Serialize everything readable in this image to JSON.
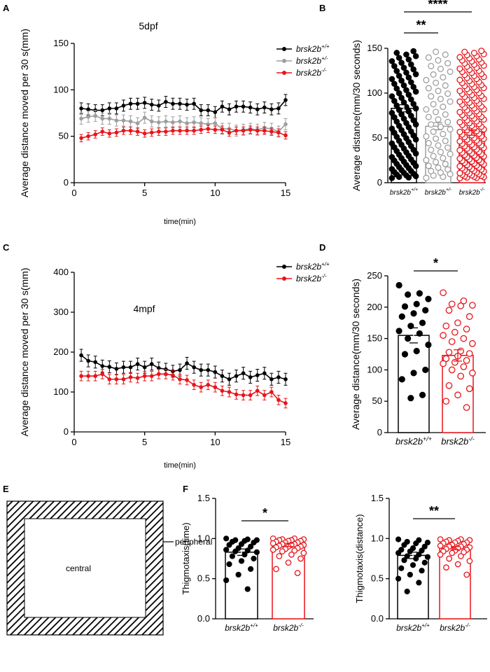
{
  "colors": {
    "wt": "#000000",
    "het": "#9e9e9e",
    "ko": "#e8141a"
  },
  "geno": {
    "base": "brsk2b",
    "wt": "+/+",
    "het": "+/-",
    "ko": "-/-"
  },
  "panel_letters": [
    "A",
    "B",
    "C",
    "D",
    "E",
    "F"
  ],
  "chart_data": [
    {
      "id": "A",
      "type": "line",
      "title": "5dpf",
      "xlabel": "time(min)",
      "ylabel": "Average distance moved per 30 s(mm)",
      "xlim": [
        0,
        15
      ],
      "ylim": [
        0,
        150
      ],
      "xticks": [
        0,
        5,
        10,
        15
      ],
      "yticks": [
        0,
        50,
        100,
        150
      ],
      "x": [
        0.5,
        1,
        1.5,
        2,
        2.5,
        3,
        3.5,
        4,
        4.5,
        5,
        5.5,
        6,
        6.5,
        7,
        7.5,
        8,
        8.5,
        9,
        9.5,
        10,
        10.5,
        11,
        11.5,
        12,
        12.5,
        13,
        13.5,
        14,
        14.5,
        15
      ],
      "legend": "top-right",
      "series": [
        {
          "name": "brsk2b+/+",
          "geno": "wt",
          "values": [
            80,
            79,
            78,
            78,
            80,
            80,
            83,
            85,
            85,
            86,
            84,
            83,
            87,
            85,
            85,
            84,
            85,
            78,
            78,
            76,
            82,
            79,
            82,
            82,
            81,
            79,
            81,
            79,
            80,
            89
          ],
          "err": [
            6,
            6,
            6,
            6,
            6,
            6,
            6,
            6,
            6,
            6,
            6,
            6,
            6,
            6,
            6,
            6,
            6,
            6,
            6,
            6,
            6,
            6,
            6,
            6,
            6,
            6,
            6,
            6,
            6,
            6
          ]
        },
        {
          "name": "brsk2b+/-",
          "geno": "het",
          "values": [
            69,
            71,
            72,
            69,
            69,
            67,
            67,
            66,
            64,
            70,
            66,
            65,
            66,
            65,
            66,
            64,
            65,
            64,
            63,
            64,
            58,
            58,
            56,
            57,
            58,
            57,
            59,
            58,
            55,
            63
          ],
          "err": [
            6,
            6,
            6,
            6,
            6,
            6,
            6,
            6,
            6,
            6,
            6,
            6,
            6,
            6,
            6,
            6,
            6,
            6,
            6,
            6,
            6,
            6,
            6,
            6,
            6,
            6,
            6,
            6,
            6,
            6
          ]
        },
        {
          "name": "brsk2b-/-",
          "geno": "ko",
          "values": [
            48,
            50,
            52,
            55,
            53,
            54,
            56,
            56,
            55,
            53,
            54,
            55,
            55,
            56,
            56,
            56,
            56,
            57,
            58,
            57,
            57,
            54,
            56,
            56,
            57,
            56,
            56,
            55,
            54,
            51
          ],
          "err": [
            4,
            4,
            4,
            4,
            4,
            4,
            4,
            4,
            4,
            4,
            4,
            4,
            4,
            4,
            4,
            4,
            4,
            4,
            4,
            4,
            4,
            4,
            4,
            4,
            4,
            4,
            4,
            4,
            4,
            4
          ]
        }
      ]
    },
    {
      "id": "B",
      "type": "bar",
      "ylabel": "Average distance(mm/30 seconds)",
      "ylim": [
        0,
        150
      ],
      "yticks": [
        0,
        50,
        100,
        150
      ],
      "series": [
        {
          "name": "brsk2b+/+",
          "geno": "wt",
          "mean": 83,
          "sem": 4,
          "n": 95
        },
        {
          "name": "brsk2b+/-",
          "geno": "het",
          "mean": 63,
          "sem": 4,
          "n": 55
        },
        {
          "name": "brsk2b-/-",
          "geno": "ko",
          "mean": 56,
          "sem": 3,
          "n": 150
        }
      ],
      "significance": [
        {
          "from": 0,
          "to": 1,
          "label": "**"
        },
        {
          "from": 0,
          "to": 2,
          "label": "****"
        }
      ]
    },
    {
      "id": "C",
      "type": "line",
      "title": "4mpf",
      "xlabel": "time(min)",
      "ylabel": "Average distance moved per 30 s(mm)",
      "xlim": [
        0,
        15
      ],
      "ylim": [
        0,
        400
      ],
      "xticks": [
        0,
        5,
        10,
        15
      ],
      "yticks": [
        0,
        100,
        200,
        300,
        400
      ],
      "x": [
        0.5,
        1,
        1.5,
        2,
        2.5,
        3,
        3.5,
        4,
        4.5,
        5,
        5.5,
        6,
        6.5,
        7,
        7.5,
        8,
        8.5,
        9,
        9.5,
        10,
        10.5,
        11,
        11.5,
        12,
        12.5,
        13,
        13.5,
        14,
        14.5,
        15
      ],
      "legend": "top-right",
      "series": [
        {
          "name": "brsk2b+/+",
          "geno": "wt",
          "values": [
            192,
            178,
            175,
            165,
            163,
            158,
            162,
            162,
            170,
            162,
            170,
            160,
            157,
            152,
            155,
            172,
            162,
            155,
            155,
            150,
            140,
            132,
            140,
            147,
            137,
            142,
            147,
            132,
            137,
            132
          ],
          "err": [
            15,
            15,
            15,
            15,
            15,
            15,
            15,
            15,
            15,
            15,
            15,
            15,
            15,
            15,
            15,
            15,
            15,
            15,
            15,
            15,
            15,
            15,
            15,
            15,
            15,
            15,
            15,
            15,
            15,
            15
          ]
        },
        {
          "name": "brsk2b-/-",
          "geno": "ko",
          "values": [
            140,
            140,
            140,
            145,
            132,
            132,
            132,
            137,
            135,
            140,
            140,
            145,
            145,
            142,
            132,
            130,
            118,
            112,
            118,
            112,
            103,
            100,
            94,
            92,
            92,
            103,
            92,
            100,
            80,
            72
          ],
          "err": [
            12,
            12,
            12,
            12,
            12,
            12,
            12,
            12,
            12,
            12,
            12,
            12,
            12,
            12,
            12,
            12,
            12,
            12,
            12,
            12,
            12,
            12,
            12,
            12,
            12,
            12,
            12,
            12,
            12,
            12
          ]
        }
      ]
    },
    {
      "id": "D",
      "type": "bar",
      "ylabel": "Average distance(mm/30 seconds)",
      "ylim": [
        0,
        250
      ],
      "yticks": [
        0,
        50,
        100,
        150,
        200,
        250
      ],
      "series": [
        {
          "name": "brsk2b+/+",
          "geno": "wt",
          "mean": 155,
          "sem": 12,
          "points": [
            235,
            222,
            220,
            213,
            205,
            201,
            195,
            190,
            185,
            175,
            170,
            162,
            158,
            150,
            140,
            130,
            125,
            100,
            95,
            85,
            60,
            55
          ]
        },
        {
          "name": "brsk2b-/-",
          "geno": "ko",
          "points": [
            223,
            210,
            205,
            203,
            202,
            195,
            185,
            175,
            170,
            165,
            160,
            155,
            150,
            145,
            142,
            130,
            128,
            126,
            122,
            118,
            115,
            112,
            110,
            105,
            100,
            95,
            90,
            75,
            70,
            60,
            50,
            40
          ],
          "mean": 123,
          "sem": 9
        }
      ],
      "significance": [
        {
          "from": 0,
          "to": 1,
          "label": "*"
        }
      ]
    },
    {
      "id": "F1",
      "type": "bar",
      "ylabel": "Thigmotaxis(time)",
      "ylim": [
        0,
        1.5
      ],
      "yticks": [
        "0.0",
        "0.5",
        "1.0",
        "1.5"
      ],
      "series": [
        {
          "name": "brsk2b+/+",
          "geno": "wt",
          "mean": 0.83,
          "sem": 0.04,
          "points": [
            1.0,
            0.99,
            0.98,
            0.98,
            0.97,
            0.96,
            0.95,
            0.93,
            0.92,
            0.9,
            0.88,
            0.86,
            0.85,
            0.84,
            0.83,
            0.8,
            0.78,
            0.75,
            0.72,
            0.68,
            0.62,
            0.55,
            0.48,
            0.37
          ]
        },
        {
          "name": "brsk2b-/-",
          "geno": "ko",
          "mean": 0.92,
          "sem": 0.02,
          "points": [
            1.0,
            1.0,
            0.99,
            0.99,
            0.98,
            0.98,
            0.97,
            0.97,
            0.96,
            0.95,
            0.95,
            0.94,
            0.93,
            0.93,
            0.92,
            0.92,
            0.91,
            0.9,
            0.9,
            0.89,
            0.88,
            0.87,
            0.86,
            0.85,
            0.84,
            0.82,
            0.8,
            0.78,
            0.75,
            0.7,
            0.62,
            0.57
          ]
        }
      ],
      "significance": [
        {
          "from": 0,
          "to": 1,
          "label": "*"
        }
      ]
    },
    {
      "id": "F2",
      "type": "bar",
      "ylabel": "Thigmotaxis(distance)",
      "ylim": [
        0,
        1.5
      ],
      "yticks": [
        "0.0",
        "0.5",
        "1.0",
        "1.5"
      ],
      "series": [
        {
          "name": "brsk2b+/+",
          "geno": "wt",
          "mean": 0.79,
          "sem": 0.04,
          "points": [
            0.99,
            0.98,
            0.96,
            0.95,
            0.94,
            0.92,
            0.9,
            0.88,
            0.86,
            0.85,
            0.84,
            0.82,
            0.8,
            0.78,
            0.77,
            0.75,
            0.73,
            0.7,
            0.67,
            0.63,
            0.6,
            0.55,
            0.5,
            0.45,
            0.34
          ]
        },
        {
          "name": "brsk2b-/-",
          "geno": "ko",
          "mean": 0.88,
          "sem": 0.02,
          "points": [
            0.99,
            0.99,
            0.98,
            0.98,
            0.97,
            0.96,
            0.95,
            0.95,
            0.94,
            0.93,
            0.92,
            0.91,
            0.9,
            0.9,
            0.89,
            0.88,
            0.87,
            0.86,
            0.85,
            0.84,
            0.83,
            0.82,
            0.8,
            0.78,
            0.75,
            0.72,
            0.68,
            0.64,
            0.55
          ]
        }
      ],
      "significance": [
        {
          "from": 0,
          "to": 1,
          "label": "**"
        }
      ]
    }
  ],
  "arena": {
    "central_label": "central",
    "peripheral_label": "peripheral"
  }
}
